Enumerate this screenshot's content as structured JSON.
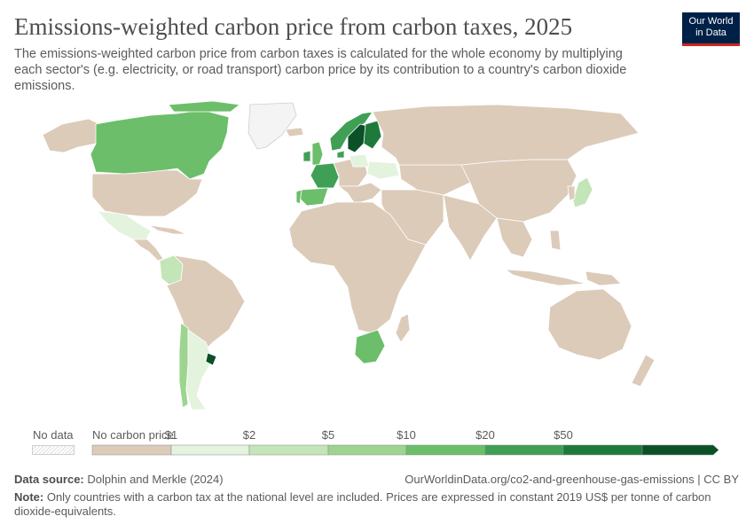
{
  "title": "Emissions-weighted carbon price from carbon taxes, 2025",
  "subtitle": "The emissions-weighted carbon price from carbon taxes is calculated for the whole economy by multiplying each sector's (e.g. electricity, or road transport) carbon price by its contribution to a country's carbon dioxide emissions.",
  "logo": {
    "line1": "Our World",
    "line2": "in Data",
    "bg_color": "#002147",
    "accent_color": "#ce261e"
  },
  "legend": {
    "no_data_label": "No data",
    "bins": [
      {
        "label": "No carbon price",
        "color": "#dccbb9"
      },
      {
        "label": "$1",
        "color": "#e3f3dd"
      },
      {
        "label": "$2",
        "color": "#c3e5b8"
      },
      {
        "label": "$5",
        "color": "#9dd48f"
      },
      {
        "label": "$10",
        "color": "#6cbe6a"
      },
      {
        "label": "$20",
        "color": "#3fa055"
      },
      {
        "label": "$50",
        "color": "#1d7a3b"
      },
      {
        "label": "",
        "color": "#0b5128"
      }
    ]
  },
  "map": {
    "ocean_color": "#ffffff",
    "land_color": "#dccbb9",
    "border_color": "#ffffff",
    "countries": [
      {
        "name": "Canada",
        "value_bin": "$10"
      },
      {
        "name": "Mexico",
        "value_bin": "$1"
      },
      {
        "name": "Colombia",
        "value_bin": "$2"
      },
      {
        "name": "Chile",
        "value_bin": "$5"
      },
      {
        "name": "Argentina",
        "value_bin": "$1"
      },
      {
        "name": "Uruguay",
        "value_bin": "$50+"
      },
      {
        "name": "South Africa",
        "value_bin": "$10"
      },
      {
        "name": "Japan",
        "value_bin": "$2"
      },
      {
        "name": "Ukraine",
        "value_bin": "$1"
      },
      {
        "name": "Poland",
        "value_bin": "$1"
      },
      {
        "name": "France",
        "value_bin": "$20"
      },
      {
        "name": "Ireland",
        "value_bin": "$20"
      },
      {
        "name": "United Kingdom",
        "value_bin": "$10"
      },
      {
        "name": "Spain",
        "value_bin": "$10"
      },
      {
        "name": "Portugal",
        "value_bin": "$10"
      },
      {
        "name": "Norway",
        "value_bin": "$20"
      },
      {
        "name": "Sweden",
        "value_bin": "$50+"
      },
      {
        "name": "Finland",
        "value_bin": "$50"
      },
      {
        "name": "Denmark",
        "value_bin": "$20"
      },
      {
        "name": "Greenland",
        "value_bin": "No data"
      }
    ]
  },
  "footer": {
    "source_label": "Data source:",
    "source_text": "Dolphin and Merkle (2024)",
    "url_text": "OurWorldinData.org/co2-and-greenhouse-gas-emissions | CC BY",
    "note_label": "Note:",
    "note_text": "Only countries with a carbon tax at the national level are included. Prices are expressed in constant 2019 US$ per tonne of carbon dioxide-equivalents."
  }
}
